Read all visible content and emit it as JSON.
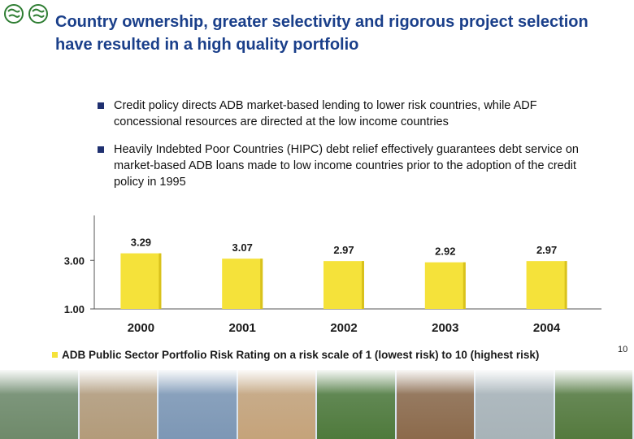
{
  "title": "Country ownership, greater selectivity and rigorous project selection have resulted in a high quality portfolio",
  "bullets": [
    "Credit policy directs ADB market-based lending to lower risk countries,  while ADF concessional resources are directed at the low income countries",
    "Heavily Indebted Poor Countries (HIPC) debt relief effectively guarantees debt service on market-based ADB loans made to low income countries prior to the adoption of the credit policy in 1995"
  ],
  "page_number": "10",
  "chart_data": {
    "type": "bar",
    "categories": [
      "2000",
      "2001",
      "2002",
      "2003",
      "2004"
    ],
    "values": [
      3.29,
      3.07,
      2.97,
      2.92,
      2.97
    ],
    "value_labels": [
      "3.29",
      "3.07",
      "2.97",
      "2.92",
      "2.97"
    ],
    "y_ticks": [
      {
        "value": 1.0,
        "label": "1.00"
      },
      {
        "value": 3.0,
        "label": "3.00"
      }
    ],
    "ylim": [
      1.0,
      4.85
    ],
    "legend": "ADB Public Sector Portfolio Risk Rating on a risk scale of 1 (lowest risk) to 10 (highest risk)",
    "colors": {
      "bar": "#f5e23a",
      "bar_shadow": "#d9c21c",
      "axis": "#555555",
      "text": "#1a1a1a"
    }
  },
  "footer": {
    "photo_colors": [
      "#6f8a6a",
      "#b39b7a",
      "#7d97b5",
      "#c5a37a",
      "#4f7a3c",
      "#8c6a4b",
      "#a8b3b8",
      "#557a3e"
    ]
  }
}
